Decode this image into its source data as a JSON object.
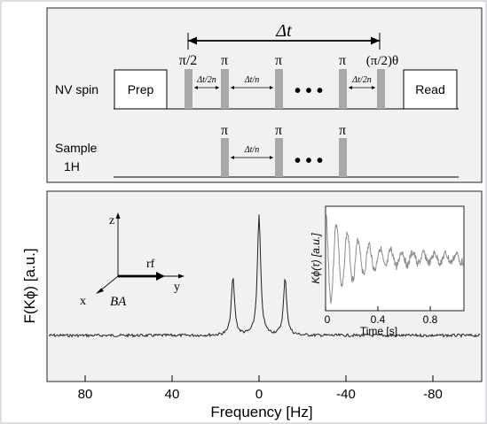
{
  "pulse_sequence": {
    "delta_t": "Δt",
    "nv_label": "NV spin",
    "sample_label": "Sample",
    "sample_sublabel": "1H",
    "prep_label": "Prep",
    "read_label": "Read",
    "nv_pulses": [
      "π/2",
      "π",
      "π",
      "π",
      "(π/2)θ"
    ],
    "sample_pulses": [
      "π",
      "π",
      "π"
    ],
    "spacing_half": "Δt/2n",
    "spacing_full": "Δt/n",
    "ellipsis": "• • •"
  },
  "spectrum": {
    "ylabel": "F(Kϕ) [a.u.]",
    "xlabel": "Frequency [Hz]",
    "xticks": [
      "80",
      "40",
      "0",
      "-40",
      "-80"
    ],
    "axes_labels": {
      "z": "z",
      "y": "y",
      "x": "x",
      "rf": "rf",
      "field": "BA"
    },
    "colors": {
      "inset_trace": "#8c8c8c",
      "panel_bg": "#f1f1f4",
      "pulse_fill": "#a9a9a9"
    }
  },
  "chart_data": {
    "type": "line",
    "xlabel": "Frequency [Hz]",
    "ylabel": "F(Kϕ) [a.u.]",
    "xlim": [
      105,
      -105
    ],
    "x_ticks": [
      80,
      40,
      0,
      -40,
      -80
    ],
    "peaks_hz": [
      12,
      0,
      -12
    ],
    "peak_heights": [
      0.48,
      1.0,
      0.47
    ],
    "inset": {
      "type": "line",
      "xlabel": "Time [s]",
      "ylabel": "Kϕ(τ) [a.u.]",
      "xlim": [
        0,
        1.0
      ],
      "x_ticks": [
        "0",
        "0.4",
        "0.8"
      ]
    }
  }
}
